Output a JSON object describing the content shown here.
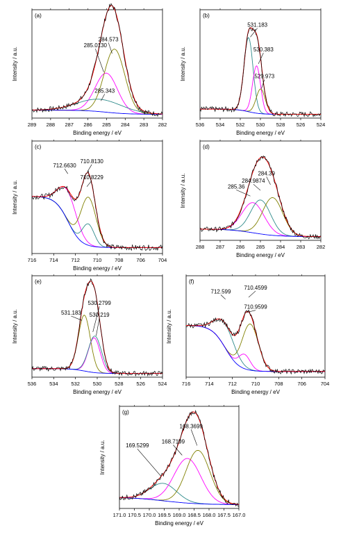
{
  "charts": [
    {
      "id": "a",
      "panel_label": "(a)",
      "xlabel": "Binding energy / eV",
      "ylabel": "Intensity / a.u.",
      "xlim": [
        289,
        282
      ],
      "xticks": [
        289,
        288,
        287,
        286,
        285,
        284,
        283,
        282
      ],
      "peaks": [
        {
          "center": 285.013,
          "height": 0.38,
          "sigma": 0.6,
          "color": "#ff00ff"
        },
        {
          "center": 284.573,
          "height": 0.62,
          "sigma": 0.55,
          "color": "#808000"
        },
        {
          "center": 285.343,
          "height": 0.12,
          "sigma": 1.2,
          "color": "#2e8b8b"
        }
      ],
      "baseline": [
        0.04,
        0.0
      ],
      "annotations": [
        {
          "text": "285.0130",
          "peak": 0,
          "tx": 285.6,
          "ty": 0.66,
          "ax": 285.15,
          "ay": 0.42
        },
        {
          "text": "284.573",
          "peak": 1,
          "tx": 284.9,
          "ty": 0.72,
          "ax": 284.7,
          "ay": 0.6
        },
        {
          "text": "285.343",
          "peak": 2,
          "tx": 285.1,
          "ty": 0.22,
          "ax": 285.3,
          "ay": 0.14
        }
      ]
    },
    {
      "id": "b",
      "panel_label": "(b)",
      "xlabel": "Binding energy / eV",
      "ylabel": "Intensity / a.u.",
      "xlim": [
        536,
        524
      ],
      "xticks": [
        536,
        534,
        532,
        530,
        528,
        526,
        524
      ],
      "peaks": [
        {
          "center": 531.183,
          "height": 0.72,
          "sigma": 0.45,
          "color": "#2e8b8b"
        },
        {
          "center": 530.383,
          "height": 0.46,
          "sigma": 0.4,
          "color": "#ff00ff"
        },
        {
          "center": 529.973,
          "height": 0.24,
          "sigma": 0.45,
          "color": "#808000"
        }
      ],
      "baseline": [
        0.05,
        0.0
      ],
      "annotations": [
        {
          "text": "531.183",
          "peak": 0,
          "tx": 530.3,
          "ty": 0.86,
          "ax": 531.0,
          "ay": 0.76
        },
        {
          "text": "530.383",
          "peak": 1,
          "tx": 529.7,
          "ty": 0.62,
          "ax": 530.2,
          "ay": 0.5
        },
        {
          "text": "529.973",
          "peak": 2,
          "tx": 529.6,
          "ty": 0.36,
          "ax": 529.9,
          "ay": 0.26
        }
      ]
    },
    {
      "id": "c",
      "panel_label": "(c)",
      "xlabel": "Binding energy / eV",
      "ylabel": "Intensity / a.u.",
      "xlim": [
        716,
        704
      ],
      "xticks": [
        716,
        714,
        712,
        710,
        708,
        706,
        704
      ],
      "peaks": [
        {
          "center": 712.663,
          "height": 0.28,
          "sigma": 0.85,
          "color": "#ff00ff"
        },
        {
          "center": 710.813,
          "height": 0.45,
          "sigma": 0.7,
          "color": "#808000"
        },
        {
          "center": 710.8229,
          "height": 0.2,
          "sigma": 0.55,
          "color": "#2e8b8b"
        }
      ],
      "baseline": [
        0.5,
        0.02
      ],
      "annotations": [
        {
          "text": "712.6630",
          "peak": 0,
          "tx": 713.0,
          "ty": 0.78,
          "ax": 712.7,
          "ay": 0.72
        },
        {
          "text": "710.8130",
          "peak": 1,
          "tx": 710.5,
          "ty": 0.82,
          "ax": 710.9,
          "ay": 0.74
        },
        {
          "text": "710.8229",
          "peak": 2,
          "tx": 710.5,
          "ty": 0.67,
          "ax": 710.95,
          "ay": 0.6
        }
      ]
    },
    {
      "id": "d",
      "panel_label": "(d)",
      "xlabel": "Binding energy / eV",
      "ylabel": "Intensity / a.u.",
      "xlim": [
        288,
        282
      ],
      "xticks": [
        288,
        287,
        286,
        285,
        284,
        283,
        282
      ],
      "peaks": [
        {
          "center": 285.36,
          "height": 0.32,
          "sigma": 0.55,
          "color": "#ff00ff"
        },
        {
          "center": 284.9874,
          "height": 0.36,
          "sigma": 0.5,
          "color": "#2e8b8b"
        },
        {
          "center": 284.39,
          "height": 0.4,
          "sigma": 0.5,
          "color": "#808000"
        }
      ],
      "baseline": [
        0.08,
        0.0
      ],
      "annotations": [
        {
          "text": "285.36",
          "peak": 0,
          "tx": 286.2,
          "ty": 0.52,
          "ax": 285.5,
          "ay": 0.44
        },
        {
          "text": "284.9874",
          "peak": 1,
          "tx": 285.35,
          "ty": 0.58,
          "ax": 285.0,
          "ay": 0.5
        },
        {
          "text": "284.39",
          "peak": 2,
          "tx": 284.7,
          "ty": 0.66,
          "ax": 284.5,
          "ay": 0.56
        }
      ]
    },
    {
      "id": "e",
      "panel_label": "(e)",
      "xlabel": "Binding energy / eV",
      "ylabel": "Intensity / a.u.",
      "xlim": [
        536,
        524
      ],
      "xticks": [
        536,
        534,
        532,
        530,
        528,
        526,
        524
      ],
      "peaks": [
        {
          "center": 531.183,
          "height": 0.58,
          "sigma": 0.55,
          "color": "#808000"
        },
        {
          "center": 530.2799,
          "height": 0.36,
          "sigma": 0.55,
          "color": "#ff00ff"
        },
        {
          "center": 530.219,
          "height": 0.38,
          "sigma": 0.6,
          "color": "#2e8b8b"
        }
      ],
      "baseline": [
        0.05,
        0.0
      ],
      "annotations": [
        {
          "text": "531.183",
          "peak": 0,
          "tx": 532.4,
          "ty": 0.62,
          "ax": 531.4,
          "ay": 0.56
        },
        {
          "text": "530.2799",
          "peak": 1,
          "tx": 529.8,
          "ty": 0.72,
          "ax": 530.4,
          "ay": 0.44
        },
        {
          "text": "530.219",
          "peak": 2,
          "tx": 529.8,
          "ty": 0.6,
          "ax": 530.1,
          "ay": 0.4
        }
      ]
    },
    {
      "id": "f",
      "panel_label": "(f)",
      "xlabel": "Binding energy / eV",
      "ylabel": "Intensity / a.u.",
      "xlim": [
        716,
        704
      ],
      "xticks": [
        716,
        714,
        712,
        710,
        708,
        706,
        704
      ],
      "peaks": [
        {
          "center": 712.599,
          "height": 0.25,
          "sigma": 0.85,
          "color": "#2e8b8b"
        },
        {
          "center": 710.4599,
          "height": 0.48,
          "sigma": 0.7,
          "color": "#808000"
        },
        {
          "center": 710.9599,
          "height": 0.15,
          "sigma": 0.5,
          "color": "#ff00ff"
        }
      ],
      "baseline": [
        0.5,
        0.02
      ],
      "annotations": [
        {
          "text": "712.599",
          "peak": 0,
          "tx": 713.0,
          "ty": 0.84,
          "ax": 712.6,
          "ay": 0.78
        },
        {
          "text": "710.4599",
          "peak": 1,
          "tx": 710.0,
          "ty": 0.88,
          "ax": 710.6,
          "ay": 0.8
        },
        {
          "text": "710.9599",
          "peak": 2,
          "tx": 710.0,
          "ty": 0.68,
          "ax": 710.9,
          "ay": 0.64
        }
      ]
    },
    {
      "id": "g",
      "panel_label": "(g)",
      "xlabel": "Binding energy / eV",
      "ylabel": "Intensity / a.u.",
      "xlim": [
        171.0,
        167.0
      ],
      "xticks": [
        171.0,
        170.5,
        170.0,
        169.5,
        169.0,
        168.5,
        168.0,
        167.5,
        167.0
      ],
      "peaks": [
        {
          "center": 169.5299,
          "height": 0.18,
          "sigma": 0.45,
          "color": "#2e8b8b"
        },
        {
          "center": 168.7199,
          "height": 0.46,
          "sigma": 0.45,
          "color": "#ff00ff"
        },
        {
          "center": 168.3699,
          "height": 0.55,
          "sigma": 0.4,
          "color": "#808000"
        }
      ],
      "baseline": [
        0.08,
        0.0
      ],
      "annotations": [
        {
          "text": "169.5299",
          "peak": 0,
          "tx": 170.4,
          "ty": 0.6,
          "ax": 169.6,
          "ay": 0.3
        },
        {
          "text": "168.7199",
          "peak": 1,
          "tx": 169.2,
          "ty": 0.64,
          "ax": 168.9,
          "ay": 0.52
        },
        {
          "text": "168.3699",
          "peak": 2,
          "tx": 168.6,
          "ty": 0.8,
          "ax": 168.4,
          "ay": 0.62
        }
      ]
    }
  ],
  "colors": {
    "raw": "#000000",
    "fit": "#ff0000",
    "baseline": "#0000ff"
  }
}
